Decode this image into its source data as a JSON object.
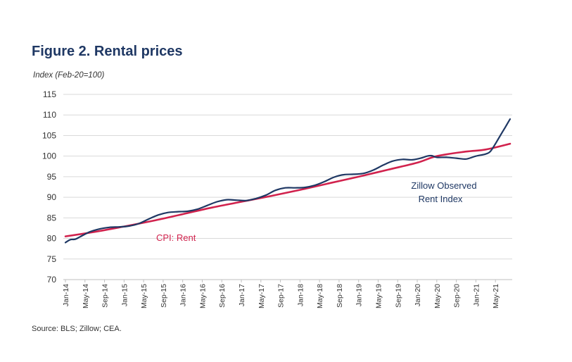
{
  "figure": {
    "title": "Figure 2. Rental prices",
    "y_axis_title": "Index (Feb-20=100)",
    "source": "Source: BLS; Zillow; CEA."
  },
  "colors": {
    "title": "#1f3864",
    "zillow": "#1f3864",
    "cpi": "#d1224d",
    "grid": "#d9d9d9"
  },
  "chart_data": {
    "type": "line",
    "title": "Figure 2. Rental prices",
    "ylabel": "Index (Feb-20=100)",
    "xlabel": "",
    "ylim": [
      70,
      115
    ],
    "yticks": [
      70,
      75,
      80,
      85,
      90,
      95,
      100,
      105,
      110,
      115
    ],
    "grid": true,
    "x_start": "Jan-14",
    "x_count": 92,
    "x_tick_labels": [
      "Jan-14",
      "May-14",
      "Sep-14",
      "Jan-15",
      "May-15",
      "Sep-15",
      "Jan-16",
      "May-16",
      "Sep-16",
      "Jan-17",
      "May-17",
      "Sep-17",
      "Jan-18",
      "May-18",
      "Sep-18",
      "Jan-19",
      "May-19",
      "Sep-19",
      "Jan-20",
      "May-20",
      "Sep-20",
      "Jan-21",
      "May-21"
    ],
    "x_tick_every": 4,
    "series": [
      {
        "name": "Zillow Observed Rent Index",
        "color": "#1f3864",
        "points": [
          [
            0,
            79.0
          ],
          [
            1,
            79.7
          ],
          [
            2,
            79.8
          ],
          [
            3,
            80.4
          ],
          [
            5,
            81.6
          ],
          [
            7,
            82.3
          ],
          [
            9,
            82.7
          ],
          [
            11,
            82.8
          ],
          [
            13,
            83.0
          ],
          [
            15,
            83.6
          ],
          [
            17,
            84.7
          ],
          [
            19,
            85.7
          ],
          [
            21,
            86.3
          ],
          [
            23,
            86.5
          ],
          [
            25,
            86.6
          ],
          [
            27,
            87.1
          ],
          [
            29,
            88.0
          ],
          [
            31,
            88.9
          ],
          [
            33,
            89.4
          ],
          [
            35,
            89.3
          ],
          [
            37,
            89.2
          ],
          [
            39,
            89.7
          ],
          [
            41,
            90.5
          ],
          [
            43,
            91.7
          ],
          [
            45,
            92.3
          ],
          [
            47,
            92.3
          ],
          [
            49,
            92.4
          ],
          [
            51,
            92.9
          ],
          [
            53,
            93.8
          ],
          [
            55,
            94.9
          ],
          [
            57,
            95.5
          ],
          [
            59,
            95.6
          ],
          [
            61,
            95.8
          ],
          [
            63,
            96.6
          ],
          [
            65,
            97.8
          ],
          [
            67,
            98.8
          ],
          [
            69,
            99.2
          ],
          [
            71,
            99.1
          ],
          [
            73,
            99.6
          ],
          [
            74,
            100.0
          ],
          [
            75,
            100.1
          ],
          [
            76,
            99.7
          ],
          [
            78,
            99.7
          ],
          [
            80,
            99.5
          ],
          [
            82,
            99.3
          ],
          [
            84,
            100.0
          ],
          [
            86,
            100.5
          ],
          [
            87,
            101.2
          ],
          [
            88,
            103.0
          ],
          [
            89,
            105.0
          ],
          [
            90,
            107.0
          ],
          [
            91,
            109.0
          ]
        ]
      },
      {
        "name": "CPI: Rent",
        "color": "#d1224d",
        "points": [
          [
            0,
            80.5
          ],
          [
            6,
            81.6
          ],
          [
            12,
            82.9
          ],
          [
            18,
            84.3
          ],
          [
            24,
            85.9
          ],
          [
            30,
            87.5
          ],
          [
            36,
            88.9
          ],
          [
            42,
            90.3
          ],
          [
            48,
            91.8
          ],
          [
            54,
            93.4
          ],
          [
            60,
            95.0
          ],
          [
            66,
            96.7
          ],
          [
            72,
            98.4
          ],
          [
            76,
            100.0
          ],
          [
            82,
            101.1
          ],
          [
            86,
            101.6
          ],
          [
            91,
            103.0
          ]
        ]
      }
    ],
    "annotations": [
      {
        "text": "Zillow Observed",
        "series": "Zillow Observed Rent Index"
      },
      {
        "text": "Rent Index",
        "series": "Zillow Observed Rent Index"
      },
      {
        "text": "CPI: Rent",
        "series": "CPI: Rent"
      }
    ]
  }
}
